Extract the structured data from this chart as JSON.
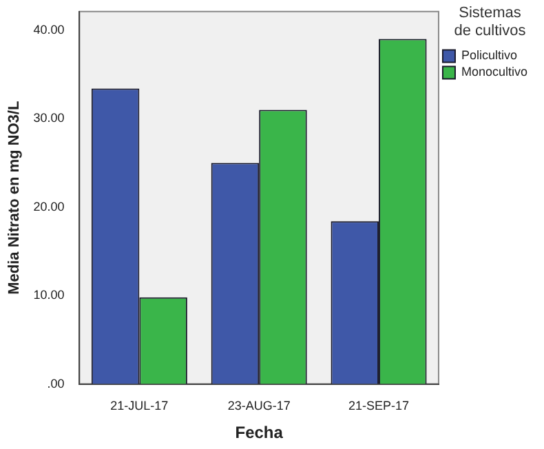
{
  "chart_data": {
    "type": "bar",
    "xlabel": "Fecha",
    "ylabel": "Media Nitrato en mg NO3/L",
    "legend_title": "Sistemas de cultivos",
    "legend": "top right",
    "categories": [
      "21-JUL-17",
      "23-AUG-17",
      "21-SEP-17"
    ],
    "series": [
      {
        "name": "Policultivo",
        "color": "#3f58a8",
        "values": [
          33.4,
          25.0,
          18.4
        ]
      },
      {
        "name": "Monocultivo",
        "color": "#3ab54a",
        "values": [
          9.8,
          31.0,
          39.0
        ]
      }
    ],
    "ylim": [
      0,
      42.1
    ],
    "yticks": [
      {
        "value": 0,
        "label": ".00"
      },
      {
        "value": 10,
        "label": "10.00"
      },
      {
        "value": 20,
        "label": "20.00"
      },
      {
        "value": 30,
        "label": "30.00"
      },
      {
        "value": 40,
        "label": "40.00"
      }
    ],
    "grid": false
  }
}
